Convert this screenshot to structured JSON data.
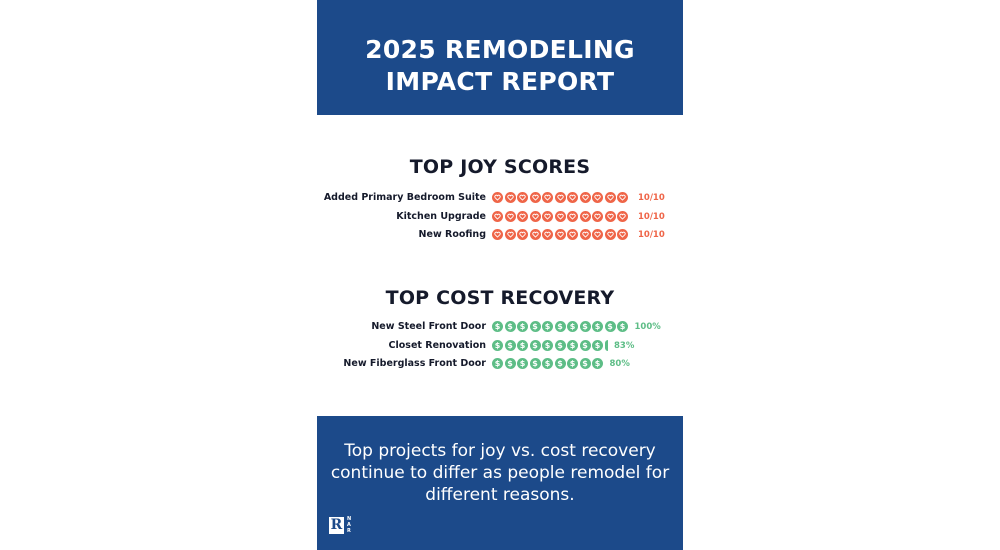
{
  "header": {
    "title_line1": "2025 REMODELING",
    "title_line2": "IMPACT REPORT"
  },
  "joy": {
    "title": "TOP JOY SCORES",
    "icon": "heart-icon",
    "color": "#ef6548",
    "rows": [
      {
        "label": "Added Primary Bedroom Suite",
        "score": "10/10",
        "icons": 11
      },
      {
        "label": "Kitchen Upgrade",
        "score": "10/10",
        "icons": 11
      },
      {
        "label": "New Roofing",
        "score": "10/10",
        "icons": 11
      }
    ]
  },
  "cost": {
    "title": "TOP COST RECOVERY",
    "icon": "dollar-coin-icon",
    "color": "#5dbd86",
    "rows": [
      {
        "label": "New Steel Front Door",
        "score": "100%",
        "icons": 11,
        "partial": false
      },
      {
        "label": "Closet Renovation",
        "score": "83%",
        "icons": 9,
        "partial": true
      },
      {
        "label": "New Fiberglass Front Door",
        "score": "80%",
        "icons": 9,
        "partial": false
      }
    ]
  },
  "chart_data": [
    {
      "type": "bar",
      "title": "TOP JOY SCORES",
      "categories": [
        "Added Primary Bedroom Suite",
        "Kitchen Upgrade",
        "New Roofing"
      ],
      "values": [
        10,
        10,
        10
      ],
      "ylim": [
        0,
        10
      ],
      "unit": "/10"
    },
    {
      "type": "bar",
      "title": "TOP COST RECOVERY",
      "categories": [
        "New Steel Front Door",
        "Closet Renovation",
        "New Fiberglass Front Door"
      ],
      "values": [
        100,
        83,
        80
      ],
      "ylim": [
        0,
        100
      ],
      "unit": "%"
    }
  ],
  "footer": {
    "text": "Top  projects for joy vs. cost recovery continue to differ as people remodel for different reasons.",
    "logo_mark": "R",
    "logo_letters": [
      "N",
      "A",
      "R"
    ]
  },
  "colors": {
    "brand_blue": "#1c4a8a",
    "heading_dark": "#151a2b"
  }
}
